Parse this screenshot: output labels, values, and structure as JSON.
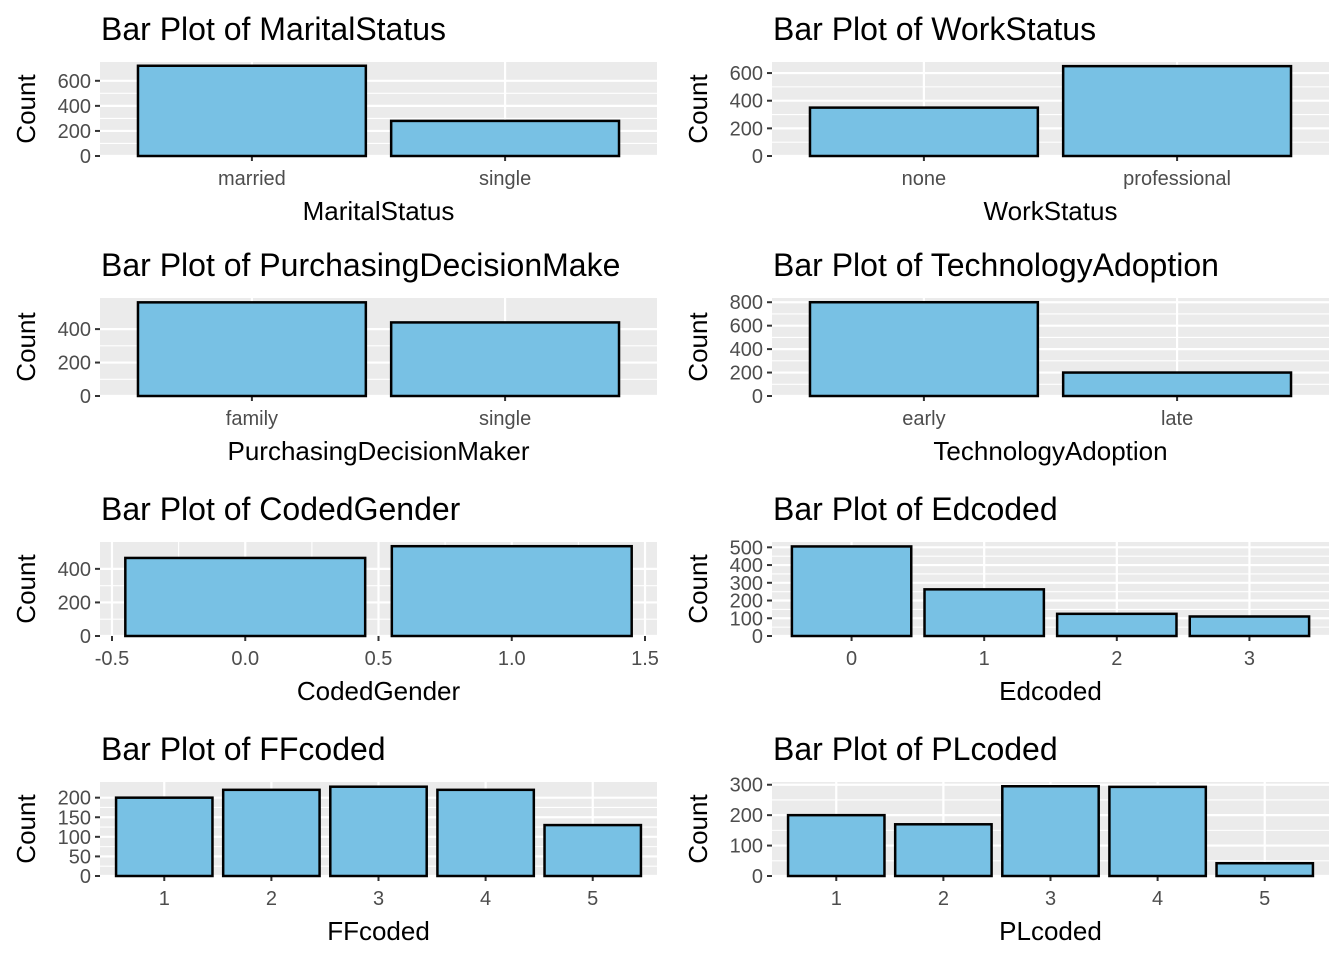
{
  "figure": {
    "panel_background": "#ebebeb",
    "grid_color": "#ffffff",
    "bar_fill": "#78c1e4",
    "bar_stroke": "#000000",
    "tick_color": "#333333"
  },
  "chart_data": [
    {
      "type": "bar",
      "title": "Bar Plot of MaritalStatus",
      "xlabel": "MaritalStatus",
      "ylabel": "Count",
      "categories": [
        "married",
        "single"
      ],
      "values": [
        720,
        280
      ],
      "yticks": [
        0,
        200,
        400,
        600
      ],
      "ylim": [
        0,
        750
      ],
      "grid": true
    },
    {
      "type": "bar",
      "title": "Bar Plot of WorkStatus",
      "xlabel": "WorkStatus",
      "ylabel": "Count",
      "categories": [
        "none",
        "professional"
      ],
      "values": [
        350,
        650
      ],
      "yticks": [
        0,
        200,
        400,
        600
      ],
      "ylim": [
        0,
        680
      ],
      "grid": true
    },
    {
      "type": "bar",
      "title": "Bar Plot of PurchasingDecisionMake",
      "xlabel": "PurchasingDecisionMaker",
      "ylabel": "Count",
      "categories": [
        "family",
        "single"
      ],
      "values": [
        560,
        440
      ],
      "yticks": [
        0,
        200,
        400
      ],
      "ylim": [
        0,
        586
      ],
      "grid": true
    },
    {
      "type": "bar",
      "title": "Bar Plot of TechnologyAdoption",
      "xlabel": "TechnologyAdoption",
      "ylabel": "Count",
      "categories": [
        "early",
        "late"
      ],
      "values": [
        800,
        200
      ],
      "yticks": [
        0,
        200,
        400,
        600,
        800
      ],
      "ylim": [
        0,
        836
      ],
      "grid": true
    },
    {
      "type": "bar",
      "title": "Bar Plot of CodedGender",
      "xlabel": "CodedGender",
      "ylabel": "Count",
      "x": [
        0,
        1
      ],
      "values": [
        465,
        535
      ],
      "bar_width": 0.9,
      "xticks": [
        "-0.5",
        "0.0",
        "0.5",
        "1.0",
        "1.5"
      ],
      "xlim": [
        -0.545,
        1.545
      ],
      "yticks": [
        0,
        200,
        400
      ],
      "ylim": [
        0,
        560
      ],
      "grid": true
    },
    {
      "type": "bar",
      "title": "Bar Plot of Edcoded",
      "xlabel": "Edcoded",
      "ylabel": "Count",
      "categories": [
        "0",
        "1",
        "2",
        "3"
      ],
      "values": [
        505,
        263,
        125,
        110
      ],
      "yticks": [
        0,
        100,
        200,
        300,
        400,
        500
      ],
      "ylim": [
        0,
        530
      ],
      "grid": true
    },
    {
      "type": "bar",
      "title": "Bar Plot of FFcoded",
      "xlabel": "FFcoded",
      "ylabel": "Count",
      "categories": [
        "1",
        "2",
        "3",
        "4",
        "5"
      ],
      "values": [
        200,
        220,
        228,
        220,
        130
      ],
      "yticks": [
        0,
        50,
        100,
        150,
        200
      ],
      "ylim": [
        0,
        240
      ],
      "grid": true
    },
    {
      "type": "bar",
      "title": "Bar Plot of PLcoded",
      "xlabel": "PLcoded",
      "ylabel": "Count",
      "categories": [
        "1",
        "2",
        "3",
        "4",
        "5"
      ],
      "values": [
        200,
        170,
        295,
        293,
        42
      ],
      "yticks": [
        0,
        100,
        200,
        300
      ],
      "ylim": [
        0,
        309
      ],
      "grid": true
    }
  ]
}
